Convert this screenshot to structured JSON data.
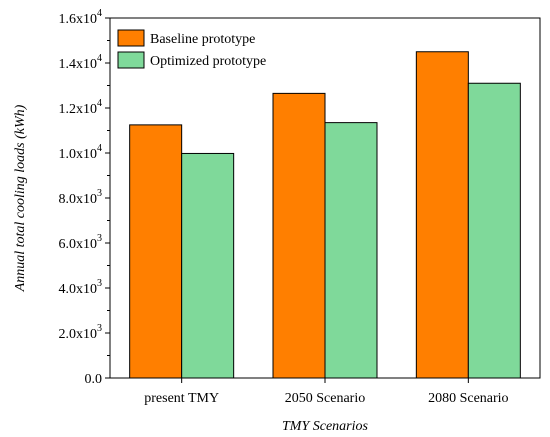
{
  "chart_data": {
    "type": "bar",
    "title": "",
    "xlabel": "TMY Scenarios",
    "ylabel": "Annual total cooling loads (kWh)",
    "categories": [
      "present TMY",
      "2050 Scenario",
      "2080 Scenario"
    ],
    "series": [
      {
        "name": "Baseline prototype",
        "color": "#ff7f00",
        "values": [
          11250,
          12650,
          14500
        ]
      },
      {
        "name": "Optimized prototype",
        "color": "#7fd99a",
        "values": [
          9980,
          11350,
          13100
        ]
      }
    ],
    "ylim": [
      0,
      16000
    ],
    "yticks": [
      0,
      2000,
      4000,
      6000,
      8000,
      10000,
      12000,
      14000,
      16000
    ],
    "ytick_labels": [
      {
        "mantissa": "0.0",
        "exp": ""
      },
      {
        "mantissa": "2.0x10",
        "exp": "3"
      },
      {
        "mantissa": "4.0x10",
        "exp": "3"
      },
      {
        "mantissa": "6.0x10",
        "exp": "3"
      },
      {
        "mantissa": "8.0x10",
        "exp": "3"
      },
      {
        "mantissa": "1.0x10",
        "exp": "4"
      },
      {
        "mantissa": "1.2x10",
        "exp": "4"
      },
      {
        "mantissa": "1.4x10",
        "exp": "4"
      },
      {
        "mantissa": "1.6x10",
        "exp": "4"
      }
    ],
    "grid": false,
    "legend": "top-left"
  }
}
